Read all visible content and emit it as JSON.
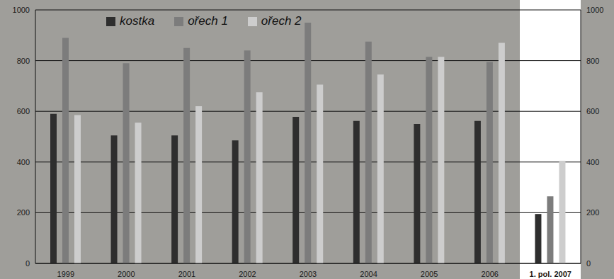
{
  "chart_data": {
    "type": "bar",
    "categories": [
      "1999",
      "2000",
      "2001",
      "2002",
      "2003",
      "2004",
      "2005",
      "2006",
      "1. pol. 2007"
    ],
    "series": [
      {
        "name": "kostka",
        "color": "#2e2e2e",
        "values": [
          590,
          505,
          505,
          485,
          578,
          562,
          550,
          562,
          195
        ]
      },
      {
        "name": "ořech 1",
        "color": "#7c7c7c",
        "values": [
          890,
          790,
          850,
          840,
          950,
          875,
          815,
          795,
          265
        ]
      },
      {
        "name": "ořech 2",
        "color": "#cdcdcd",
        "values": [
          585,
          555,
          620,
          675,
          705,
          745,
          815,
          870,
          405
        ]
      }
    ],
    "ylim": [
      0,
      1000
    ],
    "yticks": [
      0,
      200,
      400,
      600,
      800,
      1000
    ],
    "grid": true,
    "legend": "top-left"
  }
}
